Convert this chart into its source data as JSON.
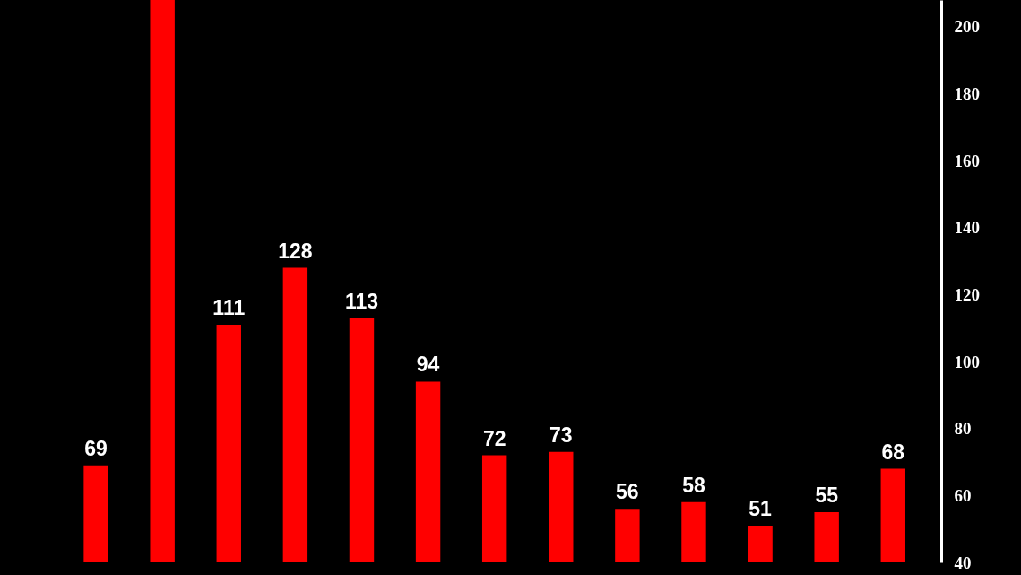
{
  "chart_data": {
    "type": "bar",
    "categories": [
      null,
      null,
      null,
      null,
      null,
      null,
      null,
      null,
      null,
      null,
      null,
      null,
      null
    ],
    "values": [
      69,
      208,
      111,
      128,
      113,
      94,
      72,
      73,
      56,
      58,
      51,
      55,
      68
    ],
    "value_labels": [
      "69",
      null,
      "111",
      "128",
      "113",
      "94",
      "72",
      "73",
      "56",
      "58",
      "51",
      "55",
      "68"
    ],
    "color": "#ff0000",
    "ylim": [
      40,
      208
    ],
    "yticks": [
      40,
      60,
      80,
      100,
      120,
      140,
      160,
      180,
      200
    ],
    "tick_labels": "y",
    "grid": false
  }
}
